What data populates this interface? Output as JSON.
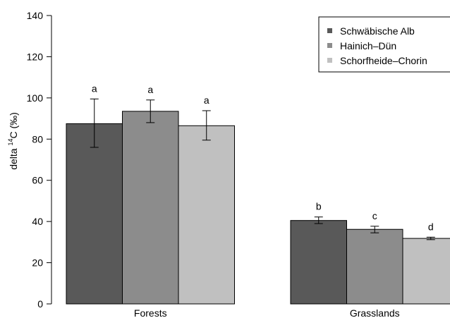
{
  "chart_data": {
    "type": "bar",
    "title": "",
    "xlabel": "",
    "ylabel_prefix": "delta ",
    "ylabel_superscript": "14",
    "ylabel_suffix": "C (‰)",
    "ylim": [
      0,
      140
    ],
    "yticks": [
      0,
      20,
      40,
      60,
      80,
      100,
      120,
      140
    ],
    "grid": false,
    "legend_position": "top-right",
    "categories": [
      "Forests",
      "Grasslands"
    ],
    "series": [
      {
        "name": "Schwäbische Alb",
        "color": "#595959",
        "values": [
          87.5,
          40.5
        ],
        "errors": [
          [
            76,
            99.5
          ],
          [
            39,
            42.2
          ]
        ],
        "letters": [
          "a",
          "b"
        ]
      },
      {
        "name": "Hainich–Dün",
        "color": "#8c8c8c",
        "values": [
          93.5,
          36.2
        ],
        "errors": [
          [
            88,
            99
          ],
          [
            34.5,
            37.7
          ]
        ],
        "letters": [
          "a",
          "c"
        ]
      },
      {
        "name": "Schorfheide–Chorin",
        "color": "#c0c0c0",
        "values": [
          86.5,
          31.8
        ],
        "errors": [
          [
            79.5,
            93.8
          ],
          [
            31.2,
            32.4
          ]
        ],
        "letters": [
          "a",
          "d"
        ]
      }
    ]
  }
}
